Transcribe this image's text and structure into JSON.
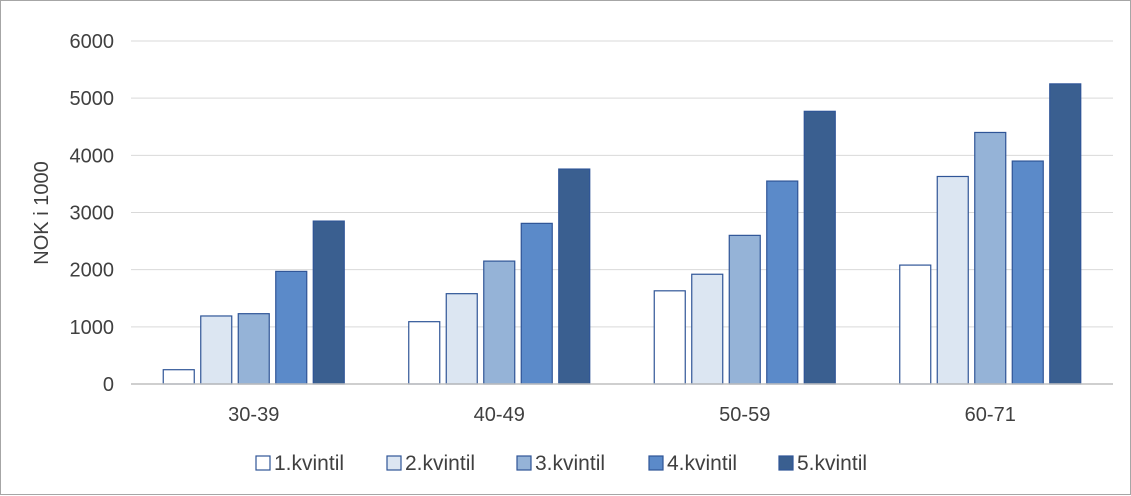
{
  "chart_data": {
    "type": "bar",
    "categories": [
      "30-39",
      "40-49",
      "50-59",
      "60-71"
    ],
    "ylabel": "NOK i 1000",
    "ylim": [
      0,
      6000
    ],
    "yticks": [
      0,
      1000,
      2000,
      3000,
      4000,
      5000,
      6000
    ],
    "grid": true,
    "legend_position": "bottom",
    "series": [
      {
        "name": "1.kvintil",
        "color": "#ffffff",
        "values": [
          250,
          1090,
          1630,
          2080
        ]
      },
      {
        "name": "2.kvintil",
        "color": "#dce6f2",
        "values": [
          1190,
          1580,
          1920,
          3630
        ]
      },
      {
        "name": "3.kvintil",
        "color": "#95b3d7",
        "values": [
          1230,
          2150,
          2600,
          4400
        ]
      },
      {
        "name": "4.kvintil",
        "color": "#5b8ac9",
        "values": [
          1970,
          2810,
          3550,
          3900
        ]
      },
      {
        "name": "5.kvintil",
        "color": "#3a5f90",
        "values": [
          2850,
          3760,
          4770,
          5250
        ]
      }
    ],
    "bar_stroke": "#2f5597"
  }
}
